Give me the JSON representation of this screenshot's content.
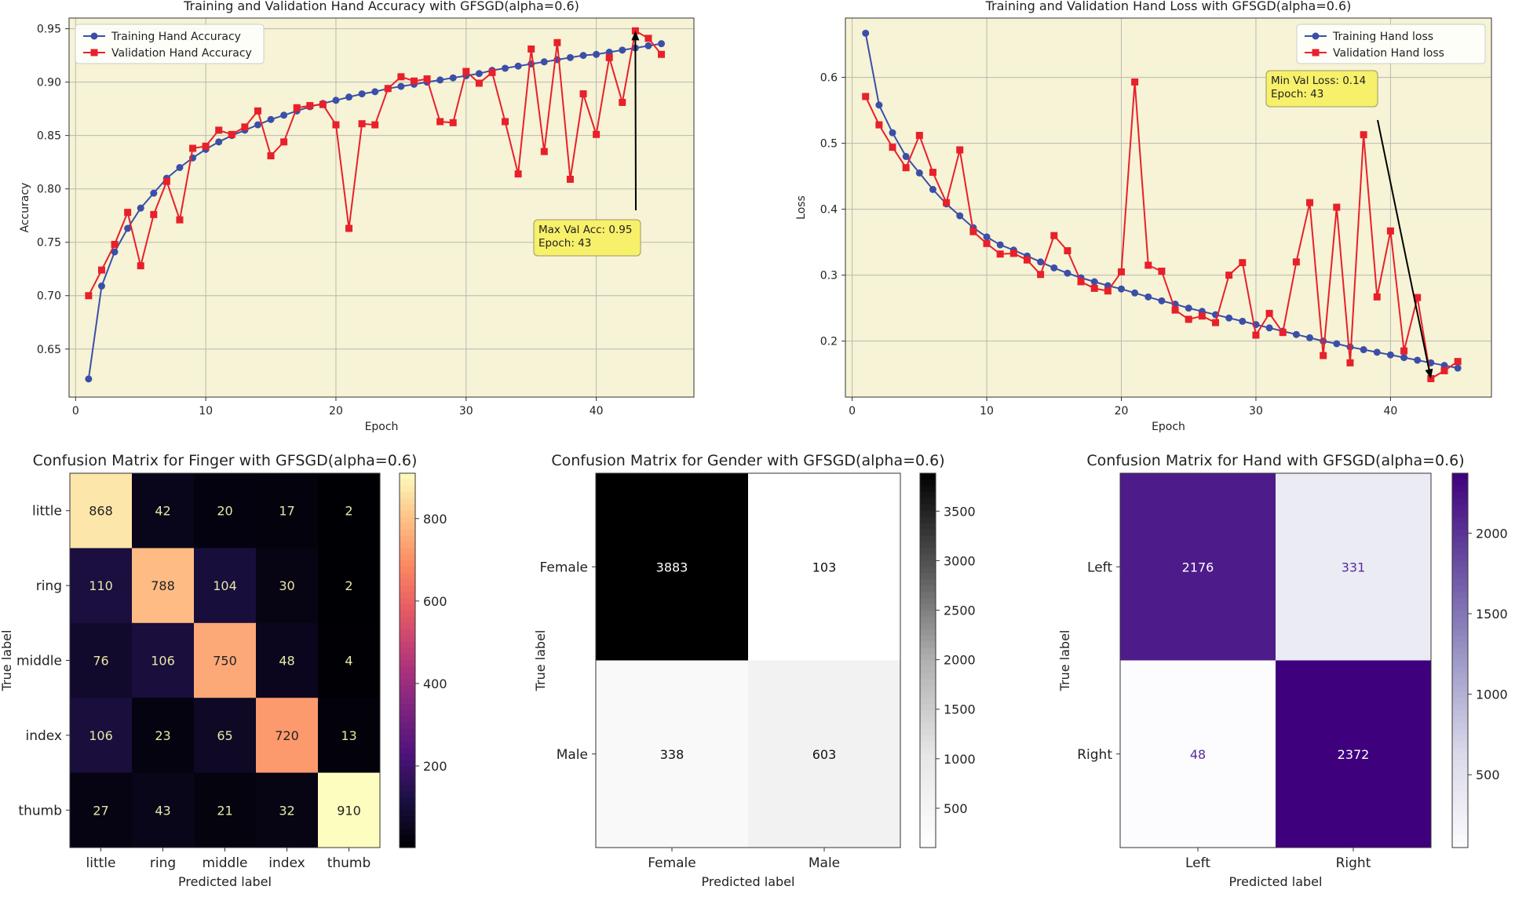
{
  "chart_data": [
    {
      "type": "line",
      "title": "Training and Validation Hand Accuracy with GFSGD(alpha=0.6)",
      "xlabel": "Epoch",
      "ylabel": "Accuracy",
      "xlim": [
        -0.5,
        47.5
      ],
      "ylim": [
        0.605,
        0.96
      ],
      "xticks": [
        0,
        10,
        20,
        30,
        40
      ],
      "yticks": [
        0.65,
        0.7,
        0.75,
        0.8,
        0.85,
        0.9,
        0.95
      ],
      "ytick_labels": [
        "0.65",
        "0.70",
        "0.75",
        "0.80",
        "0.85",
        "0.90",
        "0.95"
      ],
      "legend_position": "top-left",
      "x": [
        1,
        2,
        3,
        4,
        5,
        6,
        7,
        8,
        9,
        10,
        11,
        12,
        13,
        14,
        15,
        16,
        17,
        18,
        19,
        20,
        21,
        22,
        23,
        24,
        25,
        26,
        27,
        28,
        29,
        30,
        31,
        32,
        33,
        34,
        35,
        36,
        37,
        38,
        39,
        40,
        41,
        42,
        43,
        44,
        45
      ],
      "series": [
        {
          "name": "Training Hand Accuracy",
          "color": "#3b4fa8",
          "marker": "circle",
          "values": [
            0.622,
            0.709,
            0.741,
            0.763,
            0.782,
            0.796,
            0.81,
            0.82,
            0.829,
            0.837,
            0.844,
            0.85,
            0.855,
            0.86,
            0.865,
            0.869,
            0.873,
            0.877,
            0.88,
            0.883,
            0.886,
            0.889,
            0.891,
            0.894,
            0.896,
            0.898,
            0.9,
            0.902,
            0.904,
            0.906,
            0.908,
            0.911,
            0.913,
            0.915,
            0.917,
            0.919,
            0.921,
            0.923,
            0.925,
            0.926,
            0.928,
            0.93,
            0.932,
            0.934,
            0.936
          ]
        },
        {
          "name": "Validation Hand Accuracy",
          "color": "#e8202a",
          "marker": "square",
          "values": [
            0.7,
            0.724,
            0.748,
            0.778,
            0.728,
            0.776,
            0.807,
            0.771,
            0.838,
            0.84,
            0.855,
            0.851,
            0.858,
            0.873,
            0.831,
            0.844,
            0.876,
            0.878,
            0.879,
            0.86,
            0.763,
            0.861,
            0.86,
            0.894,
            0.905,
            0.901,
            0.903,
            0.863,
            0.862,
            0.91,
            0.899,
            0.909,
            0.863,
            0.814,
            0.931,
            0.835,
            0.937,
            0.809,
            0.889,
            0.851,
            0.923,
            0.881,
            0.948,
            0.941,
            0.926
          ]
        }
      ],
      "annotation": {
        "text_lines": [
          "Max Val Acc: 0.95",
          "Epoch: 43"
        ],
        "x": 43,
        "y": 0.948
      }
    },
    {
      "type": "line",
      "title": "Training and Validation Hand Loss with GFSGD(alpha=0.6)",
      "xlabel": "Epoch",
      "ylabel": "Loss",
      "xlim": [
        -0.5,
        47.5
      ],
      "ylim": [
        0.115,
        0.69
      ],
      "xticks": [
        0,
        10,
        20,
        30,
        40
      ],
      "yticks": [
        0.2,
        0.3,
        0.4,
        0.5,
        0.6
      ],
      "ytick_labels": [
        "0.2",
        "0.3",
        "0.4",
        "0.5",
        "0.6"
      ],
      "legend_position": "top-right",
      "x": [
        1,
        2,
        3,
        4,
        5,
        6,
        7,
        8,
        9,
        10,
        11,
        12,
        13,
        14,
        15,
        16,
        17,
        18,
        19,
        20,
        21,
        22,
        23,
        24,
        25,
        26,
        27,
        28,
        29,
        30,
        31,
        32,
        33,
        34,
        35,
        36,
        37,
        38,
        39,
        40,
        41,
        42,
        43,
        44,
        45
      ],
      "series": [
        {
          "name": "Training Hand loss",
          "color": "#3b4fa8",
          "marker": "circle",
          "values": [
            0.667,
            0.558,
            0.516,
            0.48,
            0.455,
            0.43,
            0.408,
            0.39,
            0.372,
            0.358,
            0.346,
            0.338,
            0.329,
            0.32,
            0.311,
            0.303,
            0.296,
            0.29,
            0.284,
            0.279,
            0.273,
            0.267,
            0.261,
            0.256,
            0.25,
            0.245,
            0.24,
            0.235,
            0.23,
            0.225,
            0.22,
            0.215,
            0.21,
            0.205,
            0.2,
            0.196,
            0.191,
            0.187,
            0.183,
            0.179,
            0.175,
            0.171,
            0.167,
            0.163,
            0.159
          ]
        },
        {
          "name": "Validation Hand loss",
          "color": "#e8202a",
          "marker": "square",
          "values": [
            0.571,
            0.528,
            0.494,
            0.463,
            0.512,
            0.456,
            0.41,
            0.49,
            0.366,
            0.348,
            0.332,
            0.333,
            0.323,
            0.301,
            0.36,
            0.337,
            0.29,
            0.28,
            0.276,
            0.305,
            0.593,
            0.315,
            0.306,
            0.247,
            0.233,
            0.238,
            0.228,
            0.3,
            0.319,
            0.209,
            0.242,
            0.213,
            0.32,
            0.41,
            0.178,
            0.403,
            0.167,
            0.513,
            0.267,
            0.367,
            0.185,
            0.266,
            0.143,
            0.155,
            0.169
          ]
        }
      ],
      "annotation": {
        "text_lines": [
          "Min Val Loss: 0.14",
          "Epoch: 43"
        ],
        "x": 43,
        "y": 0.143
      }
    },
    {
      "type": "heatmap",
      "title": "Confusion Matrix for Finger with GFSGD(alpha=0.6)",
      "xlabel": "Predicted label",
      "ylabel": "True label",
      "colormap": "magma",
      "labels": [
        "little",
        "ring",
        "middle",
        "index",
        "thumb"
      ],
      "matrix": [
        [
          868,
          42,
          20,
          17,
          2
        ],
        [
          110,
          788,
          104,
          30,
          2
        ],
        [
          76,
          106,
          750,
          48,
          4
        ],
        [
          106,
          23,
          65,
          720,
          13
        ],
        [
          27,
          43,
          21,
          32,
          910
        ]
      ],
      "vmin": 2,
      "vmax": 910,
      "colorbar_ticks": [
        200,
        400,
        600,
        800
      ]
    },
    {
      "type": "heatmap",
      "title": "Confusion Matrix for Gender with GFSGD(alpha=0.6)",
      "xlabel": "Predicted label",
      "ylabel": "True label",
      "colormap": "greys",
      "labels": [
        "Female",
        "Male"
      ],
      "matrix": [
        [
          3883,
          103
        ],
        [
          338,
          603
        ]
      ],
      "vmin": 103,
      "vmax": 3883,
      "colorbar_ticks": [
        500,
        1000,
        1500,
        2000,
        2500,
        3000,
        3500
      ]
    },
    {
      "type": "heatmap",
      "title": "Confusion Matrix for Hand with GFSGD(alpha=0.6)",
      "xlabel": "Predicted label",
      "ylabel": "True label",
      "colormap": "purples",
      "labels": [
        "Left",
        "Right"
      ],
      "matrix": [
        [
          2176,
          331
        ],
        [
          48,
          2372
        ]
      ],
      "vmin": 48,
      "vmax": 2372,
      "colorbar_ticks": [
        500,
        1000,
        1500,
        2000
      ]
    }
  ]
}
